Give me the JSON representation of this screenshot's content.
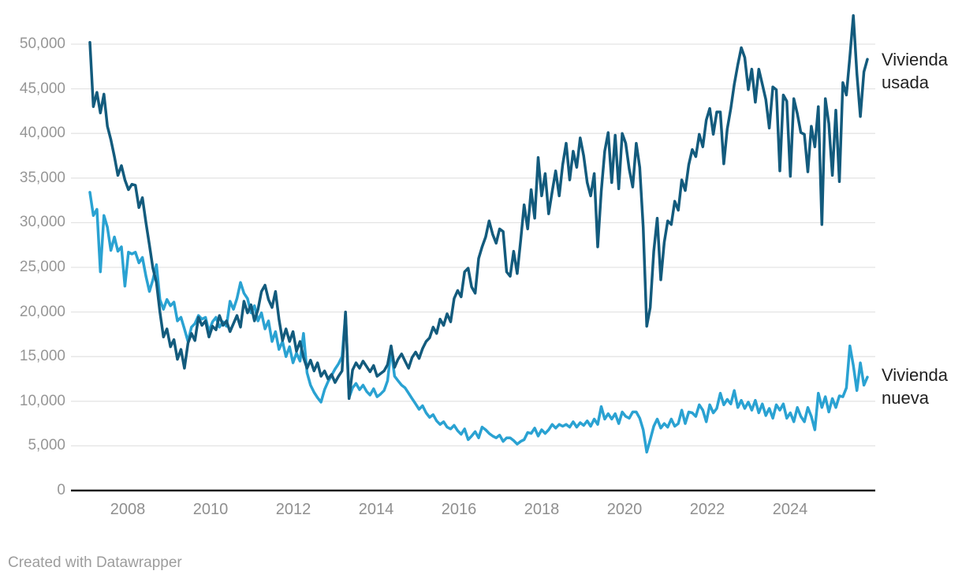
{
  "chart": {
    "footer": "Created with Datawrapper",
    "background": "#ffffff",
    "axis_line_color": "#1a1a1a",
    "gridline_color": "#e4e4e4",
    "tick_label_color": "#949494",
    "series_label_color": "#222222"
  },
  "chart_data": {
    "type": "line",
    "title": "",
    "xlabel": "",
    "ylabel": "",
    "x_period": "monthly",
    "x_start": "2007-01",
    "x_end": "2025-07",
    "grid": "horizontal",
    "legend_position": "right-of-line-ends",
    "ylim": [
      0,
      53500
    ],
    "y_ticks": [
      0,
      5000,
      10000,
      15000,
      20000,
      25000,
      30000,
      35000,
      40000,
      45000,
      50000
    ],
    "y_tick_labels": [
      "0",
      "5,000",
      "10,000",
      "15,000",
      "20,000",
      "25,000",
      "30,000",
      "35,000",
      "40,000",
      "45,000",
      "50,000"
    ],
    "x_tick_labels": [
      "2008",
      "2010",
      "2012",
      "2014",
      "2016",
      "2018",
      "2020",
      "2022",
      "2024"
    ],
    "series": [
      {
        "name": "Vivienda usada",
        "color": "#135b7d",
        "values": [
          50200,
          43000,
          44600,
          42300,
          44400,
          40800,
          39300,
          37400,
          35300,
          36400,
          34800,
          33700,
          34300,
          34200,
          31700,
          32800,
          30000,
          27500,
          24900,
          23300,
          20000,
          17200,
          18100,
          16100,
          16900,
          14700,
          15800,
          13700,
          16500,
          17600,
          16800,
          19400,
          18500,
          19000,
          17200,
          18400,
          18000,
          19600,
          18500,
          19000,
          17800,
          18700,
          19600,
          18300,
          21200,
          19900,
          20800,
          19000,
          20300,
          22300,
          23000,
          21400,
          20500,
          22300,
          19200,
          16800,
          18100,
          16700,
          17800,
          15600,
          16700,
          14900,
          13700,
          14600,
          13400,
          14300,
          12800,
          13400,
          12500,
          13000,
          12100,
          12800,
          13400,
          20000,
          10300,
          13500,
          14300,
          13700,
          14500,
          13900,
          13300,
          14000,
          12800,
          13100,
          13400,
          14100,
          16200,
          13800,
          14700,
          15300,
          14500,
          13700,
          14900,
          15500,
          14800,
          15900,
          16700,
          17100,
          18300,
          17600,
          19200,
          18500,
          19800,
          18900,
          21500,
          22400,
          21700,
          24500,
          24900,
          22800,
          22100,
          26000,
          27300,
          28400,
          30200,
          28700,
          27700,
          29300,
          29000,
          24500,
          24000,
          26800,
          24300,
          28000,
          32000,
          29300,
          33700,
          30500,
          37300,
          33000,
          35500,
          31000,
          33500,
          35800,
          33000,
          36500,
          38900,
          34800,
          38000,
          36200,
          39500,
          37500,
          34500,
          33000,
          35500,
          27300,
          33500,
          38000,
          40100,
          34500,
          39800,
          33800,
          40000,
          38900,
          36000,
          34000,
          38900,
          36200,
          29500,
          18400,
          20500,
          26800,
          30500,
          23600,
          27800,
          30200,
          29800,
          32400,
          31400,
          34800,
          33600,
          36500,
          38200,
          37400,
          39900,
          38500,
          41500,
          42800,
          39900,
          42400,
          42400,
          36600,
          40500,
          42800,
          45500,
          47700,
          49600,
          48500,
          44900,
          47200,
          43500,
          47200,
          45500,
          43800,
          40600,
          45200,
          44900,
          35800,
          44300,
          43600,
          35200,
          43900,
          42200,
          40100,
          39900,
          35700,
          40800,
          38500,
          43000,
          29800,
          43900,
          41100,
          35300,
          42600,
          34600,
          45700,
          44300,
          48600,
          53200,
          46700,
          41900,
          46900,
          48300
        ]
      },
      {
        "name": "Vivienda nueva",
        "color": "#2aa2d2",
        "values": [
          33400,
          30800,
          31500,
          24500,
          30800,
          29500,
          26900,
          28400,
          26800,
          27300,
          22900,
          26700,
          26500,
          26700,
          25500,
          26100,
          24000,
          22300,
          23600,
          25300,
          21400,
          20300,
          21400,
          20700,
          21100,
          19000,
          19400,
          18100,
          16700,
          18300,
          18700,
          19600,
          19200,
          19400,
          17800,
          18900,
          19400,
          18300,
          18900,
          18400,
          21200,
          20300,
          21500,
          23300,
          22100,
          21500,
          19900,
          20700,
          19000,
          19900,
          18100,
          19000,
          16700,
          17800,
          15800,
          16700,
          15000,
          16100,
          14300,
          15400,
          14500,
          17600,
          13200,
          11800,
          11000,
          10400,
          9900,
          11300,
          12200,
          12900,
          13600,
          14200,
          15000,
          19800,
          10400,
          11500,
          12000,
          11300,
          11800,
          11100,
          10700,
          11400,
          10500,
          10800,
          11200,
          12300,
          15800,
          12800,
          12300,
          11800,
          11500,
          10900,
          10300,
          9700,
          9100,
          9500,
          8700,
          8200,
          8500,
          7800,
          7400,
          7700,
          7100,
          6900,
          7300,
          6700,
          6300,
          6900,
          5700,
          6100,
          6600,
          5900,
          7100,
          6800,
          6400,
          6100,
          5900,
          6200,
          5500,
          5900,
          5900,
          5600,
          5200,
          5500,
          5700,
          6500,
          6400,
          7000,
          6100,
          6800,
          6400,
          6800,
          7400,
          7000,
          7400,
          7200,
          7400,
          7100,
          7700,
          7100,
          7600,
          7300,
          7800,
          7200,
          8000,
          7400,
          9400,
          8000,
          8600,
          8000,
          8600,
          7500,
          8800,
          8300,
          8100,
          8800,
          8800,
          8100,
          6800,
          4300,
          5700,
          7200,
          8000,
          7000,
          7500,
          7100,
          8000,
          7200,
          7500,
          9000,
          7500,
          8800,
          8700,
          8300,
          9600,
          9000,
          7700,
          9600,
          8700,
          9200,
          10900,
          9600,
          10200,
          9700,
          11200,
          9300,
          10100,
          9200,
          9900,
          9000,
          10100,
          8700,
          9700,
          8400,
          9200,
          8100,
          9600,
          9000,
          9700,
          8100,
          8700,
          7700,
          9300,
          8300,
          7700,
          9300,
          8300,
          6800,
          10900,
          9300,
          10500,
          8800,
          10300,
          9300,
          10600,
          10500,
          11500,
          16200,
          14000,
          11200,
          14300,
          11800,
          12700
        ]
      }
    ]
  }
}
